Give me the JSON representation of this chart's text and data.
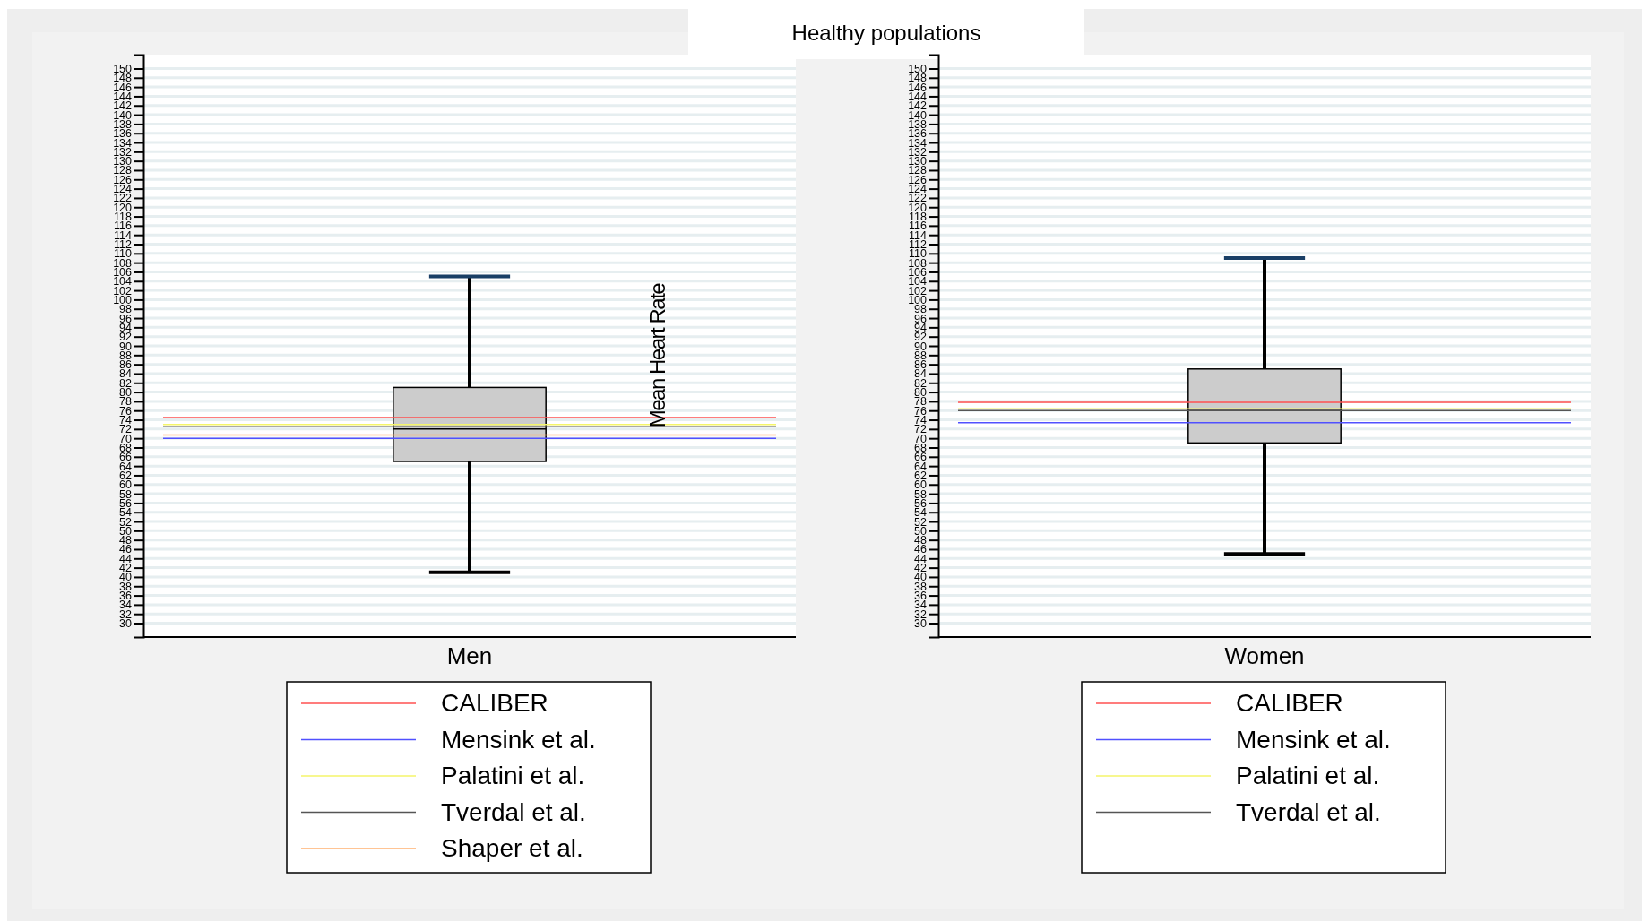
{
  "chart_data": [
    {
      "type": "box",
      "title": "Healthy populations",
      "categories": [
        "Men"
      ],
      "boxes": [
        {
          "low": 41,
          "q1": 65,
          "median": 72,
          "q3": 81,
          "high": 105
        }
      ],
      "ylim": [
        27,
        153
      ],
      "yticks": [
        30,
        32,
        34,
        36,
        38,
        40,
        42,
        44,
        46,
        48,
        50,
        52,
        54,
        56,
        58,
        60,
        62,
        64,
        66,
        68,
        70,
        72,
        74,
        76,
        78,
        80,
        82,
        84,
        86,
        88,
        90,
        92,
        94,
        96,
        98,
        100,
        102,
        104,
        106,
        108,
        110,
        112,
        114,
        116,
        118,
        120,
        122,
        124,
        126,
        128,
        130,
        132,
        134,
        136,
        138,
        140,
        142,
        144,
        146,
        148,
        150
      ],
      "grid": "y",
      "legend": "bottom",
      "annotations": [
        "Mean Heart Rate"
      ],
      "ref_lines": [
        {
          "axis": "y",
          "value": 74.5,
          "label": "CALIBER",
          "color": "#ff5050"
        },
        {
          "axis": "y",
          "value": 70,
          "label": "Mensink et al.",
          "color": "#5050ff"
        },
        {
          "axis": "y",
          "value": 73,
          "label": "Palatini et al.",
          "color": "#f5f56a"
        },
        {
          "axis": "y",
          "value": 72.5,
          "label": "Tverdal et al.",
          "color": "#555555"
        },
        {
          "axis": "y",
          "value": 70.7,
          "label": "Shaper et al.",
          "color": "#ffb070"
        }
      ]
    },
    {
      "type": "box",
      "categories": [
        "Women"
      ],
      "boxes": [
        {
          "low": 45,
          "q1": 69,
          "median": 76,
          "q3": 85,
          "high": 109
        }
      ],
      "ylim": [
        27,
        153
      ],
      "yticks": [
        30,
        32,
        34,
        36,
        38,
        40,
        42,
        44,
        46,
        48,
        50,
        52,
        54,
        56,
        58,
        60,
        62,
        64,
        66,
        68,
        70,
        72,
        74,
        76,
        78,
        80,
        82,
        84,
        86,
        88,
        90,
        92,
        94,
        96,
        98,
        100,
        102,
        104,
        106,
        108,
        110,
        112,
        114,
        116,
        118,
        120,
        122,
        124,
        126,
        128,
        130,
        132,
        134,
        136,
        138,
        140,
        142,
        144,
        146,
        148,
        150
      ],
      "grid": "y",
      "legend": "bottom",
      "ref_lines": [
        {
          "axis": "y",
          "value": 77.8,
          "label": "CALIBER",
          "color": "#ff5050"
        },
        {
          "axis": "y",
          "value": 73.4,
          "label": "Mensink et al.",
          "color": "#5050ff"
        },
        {
          "axis": "y",
          "value": 76.4,
          "label": "Palatini et al.",
          "color": "#f5f56a"
        },
        {
          "axis": "y",
          "value": 76,
          "label": "Tverdal et al.",
          "color": "#555555"
        }
      ]
    }
  ]
}
